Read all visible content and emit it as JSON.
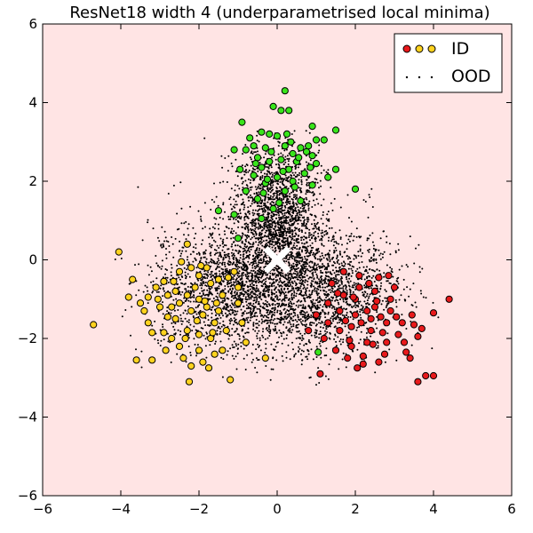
{
  "chart_data": {
    "type": "scatter",
    "title": "ResNet18 width 4 (underparametrised local minima)",
    "xlabel": "",
    "ylabel": "",
    "xlim": [
      -6,
      6
    ],
    "ylim": [
      -6,
      6
    ],
    "xticks": [
      -6,
      -4,
      -2,
      0,
      2,
      4,
      6
    ],
    "yticks": [
      -6,
      -4,
      -2,
      0,
      2,
      4,
      6
    ],
    "xtick_labels": [
      "−6",
      "−4",
      "−2",
      "0",
      "2",
      "4",
      "6"
    ],
    "ytick_labels": [
      "−6",
      "−4",
      "−2",
      "0",
      "2",
      "4",
      "6"
    ],
    "background_color": "#ffe4e4",
    "grid": false,
    "legend": {
      "placement": "top-right",
      "entries": [
        {
          "label": "ID",
          "marker": "circle",
          "colors": [
            "#e8191b",
            "#ffd21e",
            "#ffd21e"
          ]
        },
        {
          "label": "OOD",
          "marker": "dot",
          "colors": [
            "#000000"
          ]
        }
      ]
    },
    "center_marker": {
      "x": 0,
      "y": 0,
      "symbol": "x",
      "color": "#ffffff"
    },
    "series": [
      {
        "label_key": "id_green",
        "color": "#39e41b",
        "points": [
          [
            0.2,
            4.3
          ],
          [
            -0.1,
            3.9
          ],
          [
            0.1,
            3.8
          ],
          [
            0.3,
            3.8
          ],
          [
            -0.9,
            3.5
          ],
          [
            0.9,
            3.4
          ],
          [
            1.5,
            3.3
          ],
          [
            -0.4,
            3.25
          ],
          [
            -0.2,
            3.2
          ],
          [
            0.0,
            3.15
          ],
          [
            0.25,
            3.2
          ],
          [
            -0.7,
            3.1
          ],
          [
            1.2,
            3.05
          ],
          [
            -0.6,
            2.9
          ],
          [
            -0.3,
            2.85
          ],
          [
            0.6,
            2.85
          ],
          [
            0.8,
            2.9
          ],
          [
            1.0,
            3.05
          ],
          [
            -1.1,
            2.8
          ],
          [
            -0.8,
            2.8
          ],
          [
            0.4,
            2.7
          ],
          [
            0.9,
            2.65
          ],
          [
            -0.5,
            2.6
          ],
          [
            0.1,
            2.55
          ],
          [
            -0.2,
            2.5
          ],
          [
            0.5,
            2.5
          ],
          [
            1.0,
            2.45
          ],
          [
            -0.4,
            2.35
          ],
          [
            0.3,
            2.3
          ],
          [
            1.5,
            2.3
          ],
          [
            0.7,
            2.2
          ],
          [
            -0.6,
            2.15
          ],
          [
            0.0,
            2.1
          ],
          [
            0.4,
            2.0
          ],
          [
            -0.3,
            1.95
          ],
          [
            0.9,
            1.9
          ],
          [
            -0.8,
            1.75
          ],
          [
            0.2,
            1.75
          ],
          [
            2.0,
            1.8
          ],
          [
            -0.5,
            1.55
          ],
          [
            0.6,
            1.5
          ],
          [
            -0.1,
            1.3
          ],
          [
            -1.5,
            1.25
          ],
          [
            -1.1,
            1.15
          ],
          [
            -0.4,
            1.05
          ],
          [
            0.2,
            2.9
          ],
          [
            -0.15,
            2.75
          ],
          [
            0.55,
            2.6
          ],
          [
            -0.55,
            2.45
          ],
          [
            0.85,
            2.35
          ],
          [
            0.15,
            2.25
          ],
          [
            -0.25,
            2.05
          ],
          [
            0.45,
            1.85
          ],
          [
            -0.35,
            1.7
          ],
          [
            0.05,
            1.45
          ],
          [
            1.3,
            2.1
          ],
          [
            0.75,
            2.75
          ],
          [
            -0.95,
            2.3
          ],
          [
            0.35,
            3.0
          ],
          [
            -1.0,
            0.55
          ],
          [
            1.05,
            -2.35
          ]
        ]
      },
      {
        "label_key": "id_yellow",
        "color": "#ffd21e",
        "points": [
          [
            -4.05,
            0.2
          ],
          [
            -4.7,
            -1.65
          ],
          [
            -3.7,
            -0.5
          ],
          [
            -3.8,
            -0.95
          ],
          [
            -3.5,
            -1.1
          ],
          [
            -3.4,
            -1.3
          ],
          [
            -3.6,
            -2.55
          ],
          [
            -3.2,
            -2.55
          ],
          [
            -3.1,
            -0.7
          ],
          [
            -2.9,
            -0.55
          ],
          [
            -3.0,
            -1.2
          ],
          [
            -2.8,
            -1.45
          ],
          [
            -3.3,
            -1.6
          ],
          [
            -3.2,
            -1.85
          ],
          [
            -2.9,
            -1.85
          ],
          [
            -2.7,
            -2.0
          ],
          [
            -2.5,
            -0.3
          ],
          [
            -2.6,
            -0.8
          ],
          [
            -2.5,
            -1.1
          ],
          [
            -2.6,
            -1.5
          ],
          [
            -2.5,
            -2.2
          ],
          [
            -2.4,
            -2.5
          ],
          [
            -2.3,
            0.4
          ],
          [
            -2.2,
            -0.2
          ],
          [
            -2.3,
            -0.9
          ],
          [
            -2.2,
            -1.3
          ],
          [
            -2.3,
            -1.8
          ],
          [
            -2.2,
            -2.7
          ],
          [
            -2.25,
            -3.1
          ],
          [
            -2.0,
            -0.4
          ],
          [
            -2.1,
            -0.7
          ],
          [
            -2.0,
            -1.0
          ],
          [
            -1.9,
            -1.4
          ],
          [
            -2.0,
            -1.9
          ],
          [
            -2.0,
            -2.3
          ],
          [
            -1.9,
            -2.6
          ],
          [
            -1.8,
            -0.2
          ],
          [
            -1.7,
            -0.6
          ],
          [
            -1.8,
            -1.2
          ],
          [
            -1.6,
            -1.6
          ],
          [
            -1.7,
            -2.0
          ],
          [
            -1.6,
            -2.4
          ],
          [
            -1.5,
            -0.5
          ],
          [
            -1.4,
            -0.9
          ],
          [
            -1.5,
            -1.3
          ],
          [
            -1.3,
            -1.8
          ],
          [
            -1.4,
            -2.3
          ],
          [
            -1.2,
            -3.05
          ],
          [
            -1.1,
            -0.3
          ],
          [
            -1.0,
            -0.7
          ],
          [
            -1.0,
            -1.1
          ],
          [
            -0.9,
            -1.6
          ],
          [
            -0.8,
            -2.1
          ],
          [
            -0.3,
            -2.5
          ],
          [
            -2.8,
            -0.9
          ],
          [
            -2.7,
            -1.2
          ],
          [
            -2.45,
            -0.05
          ],
          [
            -1.85,
            -1.05
          ],
          [
            -1.65,
            -1.85
          ],
          [
            -3.05,
            -1.0
          ],
          [
            -2.85,
            -2.3
          ],
          [
            -2.05,
            -1.55
          ],
          [
            -1.25,
            -0.45
          ],
          [
            -1.75,
            -2.75
          ],
          [
            -2.65,
            -0.55
          ],
          [
            -2.35,
            -2.0
          ],
          [
            -1.95,
            -0.15
          ],
          [
            -1.55,
            -1.1
          ],
          [
            -3.3,
            -0.95
          ]
        ]
      },
      {
        "label_key": "id_red",
        "color": "#e8191b",
        "points": [
          [
            4.4,
            -1.0
          ],
          [
            4.0,
            -1.35
          ],
          [
            3.7,
            -1.75
          ],
          [
            3.6,
            -1.95
          ],
          [
            3.45,
            -1.4
          ],
          [
            3.3,
            -2.35
          ],
          [
            3.4,
            -2.5
          ],
          [
            3.8,
            -2.95
          ],
          [
            4.0,
            -2.95
          ],
          [
            3.6,
            -3.1
          ],
          [
            3.2,
            -1.6
          ],
          [
            3.1,
            -1.9
          ],
          [
            3.0,
            -0.7
          ],
          [
            2.9,
            -1.0
          ],
          [
            2.9,
            -1.3
          ],
          [
            2.8,
            -1.6
          ],
          [
            2.8,
            -2.1
          ],
          [
            2.75,
            -2.4
          ],
          [
            2.6,
            -2.6
          ],
          [
            2.6,
            -0.45
          ],
          [
            2.5,
            -0.8
          ],
          [
            2.5,
            -1.2
          ],
          [
            2.4,
            -1.5
          ],
          [
            2.4,
            -1.8
          ],
          [
            2.3,
            -2.1
          ],
          [
            2.2,
            -2.45
          ],
          [
            2.2,
            -2.65
          ],
          [
            2.1,
            -0.4
          ],
          [
            2.1,
            -0.7
          ],
          [
            2.0,
            -1.0
          ],
          [
            2.0,
            -1.4
          ],
          [
            1.9,
            -1.7
          ],
          [
            1.9,
            -2.2
          ],
          [
            1.8,
            -2.5
          ],
          [
            1.7,
            -0.3
          ],
          [
            1.7,
            -0.9
          ],
          [
            1.6,
            -1.3
          ],
          [
            1.6,
            -1.8
          ],
          [
            1.5,
            -2.3
          ],
          [
            1.4,
            -0.6
          ],
          [
            1.3,
            -1.1
          ],
          [
            1.3,
            -1.6
          ],
          [
            1.2,
            -2.0
          ],
          [
            1.1,
            -2.9
          ],
          [
            1.0,
            -1.4
          ],
          [
            0.8,
            -1.8
          ],
          [
            2.3,
            -1.3
          ],
          [
            2.55,
            -1.05
          ],
          [
            2.7,
            -1.85
          ],
          [
            2.15,
            -1.6
          ],
          [
            1.95,
            -0.95
          ],
          [
            2.85,
            -0.4
          ],
          [
            3.25,
            -2.1
          ],
          [
            2.45,
            -2.15
          ],
          [
            1.75,
            -1.55
          ],
          [
            2.05,
            -2.75
          ],
          [
            1.55,
            -0.85
          ],
          [
            3.05,
            -1.45
          ],
          [
            2.65,
            -1.45
          ],
          [
            2.35,
            -0.6
          ],
          [
            1.85,
            -2.05
          ],
          [
            3.5,
            -1.65
          ]
        ]
      }
    ],
    "ood": {
      "label_key": "ood",
      "color": "#000000",
      "description_x_range": [
        -4.0,
        4.2
      ],
      "description_y_range": [
        -4.0,
        3.2
      ]
    }
  }
}
